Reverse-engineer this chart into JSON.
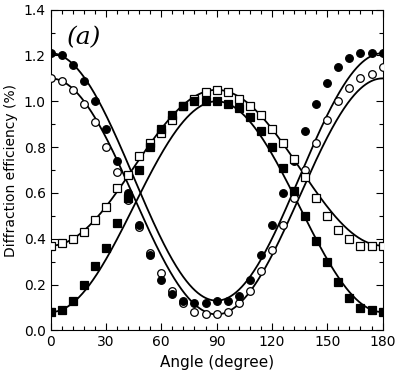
{
  "title": "(a)",
  "xlabel": "Angle (degree)",
  "ylabel": "Diffraction efficiency (%)",
  "xlim": [
    0,
    180
  ],
  "ylim": [
    0.0,
    1.4
  ],
  "yticks": [
    0.0,
    0.2,
    0.4,
    0.6,
    0.8,
    1.0,
    1.2,
    1.4
  ],
  "xticks": [
    0,
    30,
    60,
    90,
    120,
    150,
    180
  ],
  "open_circles": {
    "x": [
      0,
      6,
      12,
      18,
      24,
      30,
      36,
      42,
      48,
      54,
      60,
      66,
      72,
      78,
      84,
      90,
      96,
      102,
      108,
      114,
      120,
      126,
      132,
      138,
      144,
      150,
      156,
      162,
      168,
      174,
      180
    ],
    "y": [
      1.1,
      1.09,
      1.05,
      0.99,
      0.91,
      0.8,
      0.69,
      0.57,
      0.45,
      0.34,
      0.25,
      0.17,
      0.12,
      0.08,
      0.07,
      0.07,
      0.08,
      0.12,
      0.17,
      0.26,
      0.35,
      0.46,
      0.58,
      0.7,
      0.82,
      0.92,
      1.0,
      1.06,
      1.1,
      1.12,
      1.15
    ]
  },
  "closed_circles": {
    "x": [
      0,
      6,
      12,
      18,
      24,
      30,
      36,
      42,
      48,
      54,
      60,
      66,
      72,
      78,
      84,
      90,
      96,
      102,
      108,
      114,
      120,
      126,
      132,
      138,
      144,
      150,
      156,
      162,
      168,
      174,
      180
    ],
    "y": [
      1.21,
      1.2,
      1.16,
      1.09,
      1.0,
      0.88,
      0.74,
      0.6,
      0.46,
      0.33,
      0.22,
      0.16,
      0.13,
      0.12,
      0.12,
      0.13,
      0.13,
      0.15,
      0.22,
      0.33,
      0.46,
      0.6,
      0.74,
      0.87,
      0.99,
      1.08,
      1.15,
      1.19,
      1.21,
      1.21,
      1.21
    ]
  },
  "open_squares": {
    "x": [
      0,
      6,
      12,
      18,
      24,
      30,
      36,
      42,
      48,
      54,
      60,
      66,
      72,
      78,
      84,
      90,
      96,
      102,
      108,
      114,
      120,
      126,
      132,
      138,
      144,
      150,
      156,
      162,
      168,
      174,
      180
    ],
    "y": [
      0.37,
      0.38,
      0.4,
      0.43,
      0.48,
      0.54,
      0.62,
      0.68,
      0.76,
      0.82,
      0.86,
      0.92,
      0.98,
      1.01,
      1.04,
      1.05,
      1.04,
      1.01,
      0.98,
      0.94,
      0.88,
      0.82,
      0.75,
      0.67,
      0.58,
      0.5,
      0.44,
      0.4,
      0.37,
      0.37,
      0.37
    ]
  },
  "closed_squares": {
    "x": [
      0,
      6,
      12,
      18,
      24,
      30,
      36,
      42,
      48,
      54,
      60,
      66,
      72,
      78,
      84,
      90,
      96,
      102,
      108,
      114,
      120,
      126,
      132,
      138,
      144,
      150,
      156,
      162,
      168,
      174,
      180
    ],
    "y": [
      0.08,
      0.09,
      0.13,
      0.2,
      0.28,
      0.36,
      0.47,
      0.58,
      0.7,
      0.8,
      0.88,
      0.94,
      0.98,
      1.0,
      1.0,
      1.0,
      0.99,
      0.97,
      0.93,
      0.87,
      0.8,
      0.71,
      0.61,
      0.5,
      0.39,
      0.3,
      0.21,
      0.14,
      0.1,
      0.09,
      0.08
    ]
  },
  "curve_open_circles": {
    "A": 1.1,
    "B": 0.07
  },
  "curve_closed_circles": {
    "A": 1.21,
    "B": 0.13
  },
  "curve_open_squares": {
    "A": 1.05,
    "B": 0.37
  },
  "curve_closed_squares": {
    "A": 1.0,
    "B": 0.08
  },
  "figsize": [
    4.0,
    3.74
  ],
  "dpi": 100,
  "background_color": "#ffffff",
  "line_color": "black"
}
